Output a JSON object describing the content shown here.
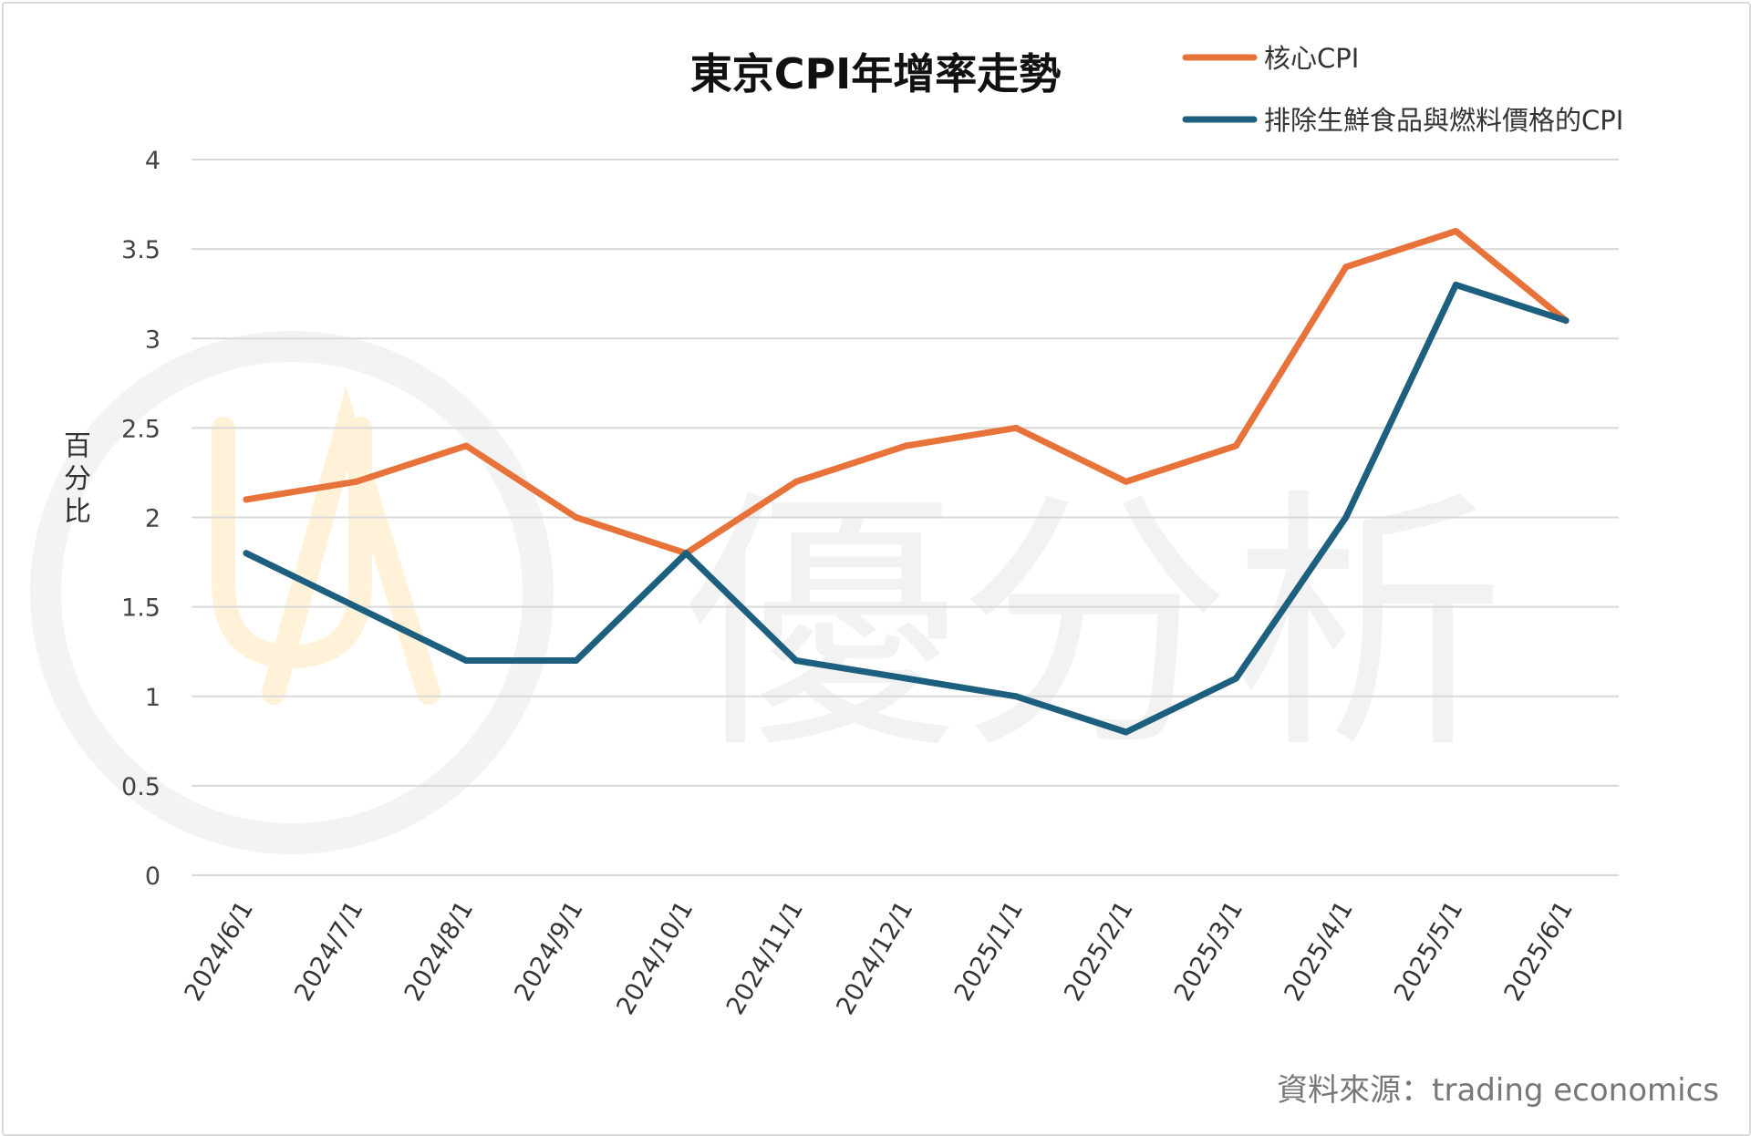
{
  "chart_data": {
    "type": "line",
    "title": "東京CPI年增率走勢",
    "xlabel": "",
    "ylabel": "百分比",
    "ylim": [
      0,
      4
    ],
    "yticks": [
      0,
      0.5,
      1,
      1.5,
      2,
      2.5,
      3,
      3.5,
      4
    ],
    "grid": "horizontal",
    "legend_position": "top-right",
    "categories": [
      "2024/6/1",
      "2024/7/1",
      "2024/8/1",
      "2024/9/1",
      "2024/10/1",
      "2024/11/1",
      "2024/12/1",
      "2025/1/1",
      "2025/2/1",
      "2025/3/1",
      "2025/4/1",
      "2025/5/1",
      "2025/6/1"
    ],
    "series": [
      {
        "name": "核心CPI",
        "color": "#E8733A",
        "values": [
          2.1,
          2.2,
          2.4,
          2.0,
          1.8,
          2.2,
          2.4,
          2.5,
          2.2,
          2.4,
          3.4,
          3.6,
          3.1
        ]
      },
      {
        "name": "排除生鮮食品與燃料價格的CPI",
        "color": "#1D5F7E",
        "values": [
          1.8,
          1.5,
          1.2,
          1.2,
          1.8,
          1.2,
          1.1,
          1.0,
          0.8,
          1.1,
          2.0,
          3.3,
          3.1
        ]
      }
    ],
    "source": "資料來源：trading economics"
  },
  "watermark": {
    "text": "優分析",
    "logo_color": "#FFF3DC",
    "text_color": "#F2F2F2"
  }
}
